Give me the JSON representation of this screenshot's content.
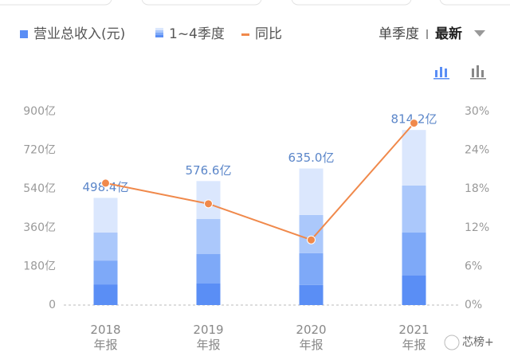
{
  "chart_data": {
    "type": "stacked_bar_line",
    "controls": {
      "view": "单季度",
      "sort": "最新"
    },
    "stack_legend": "1~4季度",
    "categories": [
      "2018\n年报",
      "2019\n年报",
      "2020\n年报",
      "2021\n年报"
    ],
    "series": [
      {
        "name": "营业总收入(元)",
        "color": "#5a8ef5",
        "values": [
          498.4,
          576.6,
          635.0,
          814.2
        ],
        "value_labels": [
          "498.4亿",
          "576.6亿",
          "635.0亿",
          "814.2亿"
        ]
      },
      {
        "name": "同比",
        "color": "#f0894b",
        "axis": "y2",
        "values": [
          18.9,
          15.7,
          10.1,
          28.2
        ]
      }
    ],
    "stack_colors": [
      "#5a8ef5",
      "#7ea9f8",
      "#abc8fb",
      "#dbe7fd"
    ],
    "stacks": [
      [
        96,
        111,
        130,
        161.4
      ],
      [
        100,
        137,
        163,
        176.6
      ],
      [
        93,
        148,
        178,
        216
      ],
      [
        137,
        200,
        219,
        258.2
      ]
    ],
    "ylim": [
      0,
      900
    ],
    "yticks": [
      0,
      {
        "value": 180,
        "label": "180亿"
      },
      {
        "value": 360,
        "label": "360亿"
      },
      {
        "value": 540,
        "label": "540亿"
      },
      {
        "value": 720,
        "label": "720亿"
      },
      {
        "value": 900,
        "label": "900亿"
      }
    ],
    "y2lim": [
      0,
      30
    ],
    "y2ticks": [
      {
        "value": 0,
        "label": "0%"
      },
      {
        "value": 6,
        "label": "6%"
      },
      {
        "value": 12,
        "label": "12%"
      },
      {
        "value": 18,
        "label": "18%"
      },
      {
        "value": 24,
        "label": "24%"
      },
      {
        "value": 30,
        "label": "30%"
      }
    ],
    "grid": false,
    "watermark": "芯榜+"
  }
}
